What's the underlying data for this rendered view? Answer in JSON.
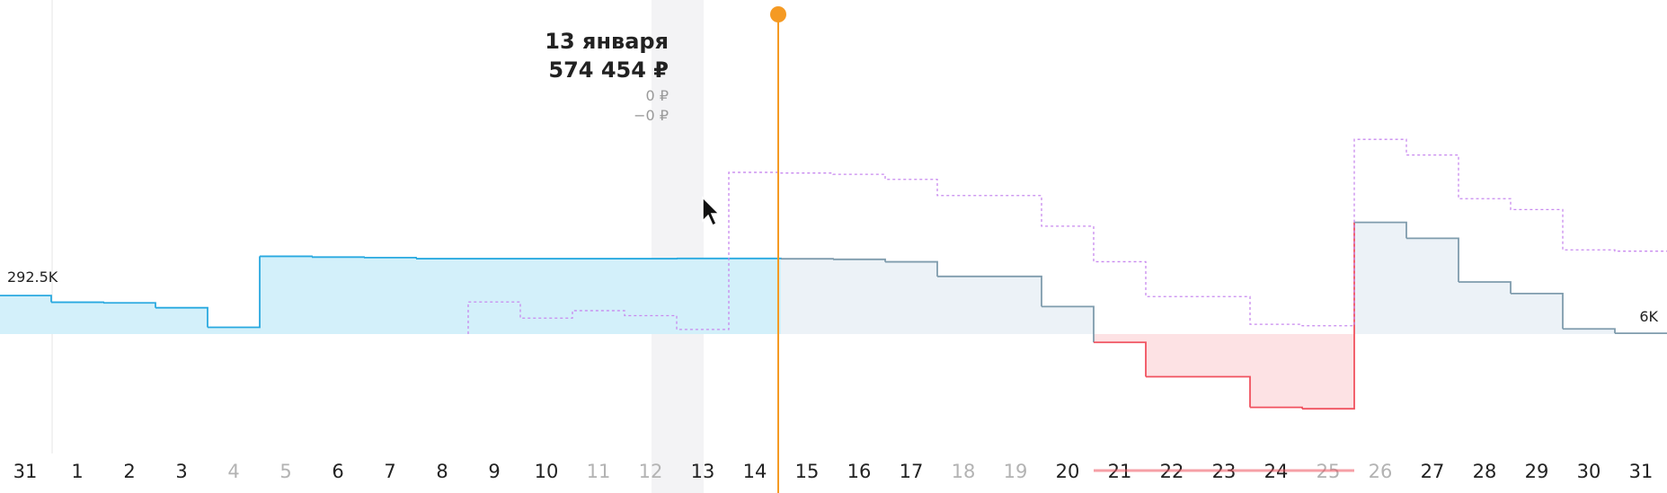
{
  "tooltip": {
    "date": "13 января",
    "value": "574 454 ₽",
    "line1": "0 ₽",
    "line2": "−0 ₽"
  },
  "labels": {
    "left": "292.5K",
    "right": "6K"
  },
  "colors": {
    "positive_line": "#29a9e0",
    "positive_fill": "#d3f0fa",
    "forecast_line": "#7f9cad",
    "forecast_fill": "#ecf2f7",
    "negative_line": "#f0525f",
    "negative_fill": "#fde2e4",
    "dashed_line": "#c889ef",
    "cursor_line": "#f59a23",
    "selected_band": "#f3f3f5",
    "tick_dark": "#222222",
    "tick_light": "#b3b3b3"
  },
  "chart_data": {
    "type": "line",
    "step": true,
    "categories": [
      "31",
      "1",
      "2",
      "3",
      "4",
      "5",
      "6",
      "7",
      "8",
      "9",
      "10",
      "11",
      "12",
      "13",
      "14",
      "15",
      "16",
      "17",
      "18",
      "19",
      "20",
      "21",
      "22",
      "23",
      "24",
      "25",
      "26",
      "27",
      "28",
      "29",
      "30",
      "31"
    ],
    "weekend_days": [
      "4",
      "5",
      "11",
      "12",
      "18",
      "19",
      "25",
      "26"
    ],
    "highlighted_day": "13",
    "cursor_after_day": "14",
    "negative_range_days": [
      "21",
      "22",
      "23",
      "24",
      "25"
    ],
    "series": [
      {
        "style": "solid",
        "values": [
          292.5,
          242,
          237,
          200,
          51,
          591,
          585,
          581,
          573,
          573,
          573,
          573,
          573,
          574.5,
          574.5,
          572,
          568,
          549,
          438,
          438,
          209,
          -63,
          -324,
          -324,
          -557,
          -568,
          849,
          728,
          396,
          308,
          39,
          6
        ]
      },
      {
        "style": "dashed",
        "values": [
          null,
          null,
          null,
          null,
          null,
          null,
          null,
          null,
          null,
          244,
          121,
          178,
          140,
          35,
          1229,
          1224,
          1214,
          1176,
          1053,
          1053,
          820,
          550,
          285,
          285,
          74,
          63,
          1480,
          1361,
          1029,
          946,
          640,
          630
        ]
      }
    ],
    "ylim": [
      -700,
      2300
    ]
  }
}
